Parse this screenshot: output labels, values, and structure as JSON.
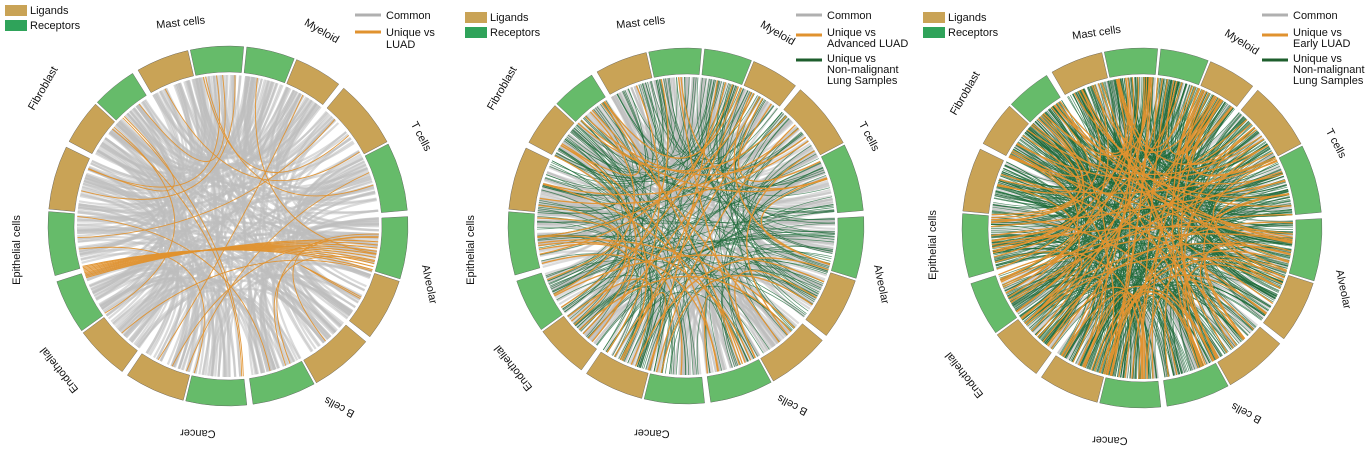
{
  "colors": {
    "ligand": "#c9a356",
    "receptor": "#66bb6a",
    "common": "#bdbdbd",
    "unique_luad": "#e0922f",
    "unique_nonmalignant": "#1d6b3a"
  },
  "panels": [
    {
      "legend_left": [
        {
          "label": "Ligands",
          "color": "#c9a356"
        },
        {
          "label": "Receptors",
          "color": "#2fa35a"
        }
      ],
      "legend_right": [
        {
          "lines": [
            "Common"
          ],
          "color": "#b0b0b0"
        },
        {
          "lines": [
            "Unique vs",
            "LUAD"
          ],
          "color": "#e0922f"
        }
      ],
      "segments": [
        "Mast cells",
        "Myeloid",
        "T cells",
        "Alveolar",
        "B cells",
        "Cancer",
        "Endothelial",
        "Epithelial cells",
        "Fibroblast"
      ],
      "density": {
        "common": 320,
        "unique_luad": 22,
        "unique_nonmalignant": 0
      }
    },
    {
      "legend_left": [
        {
          "label": "Ligands",
          "color": "#c9a356"
        },
        {
          "label": "Receptors",
          "color": "#2fa35a"
        }
      ],
      "legend_right": [
        {
          "lines": [
            "Common"
          ],
          "color": "#b0b0b0"
        },
        {
          "lines": [
            "Unique vs",
            "Advanced LUAD"
          ],
          "color": "#e0922f"
        },
        {
          "lines": [
            "Unique vs",
            "Non-malignant",
            "Lung Samples"
          ],
          "color": "#1d5e2c"
        }
      ],
      "segments": [
        "Mast cells",
        "Myeloid",
        "T cells",
        "Alveolar",
        "B cells",
        "Cancer",
        "Endothelial",
        "Epithelial cells",
        "Fibroblast"
      ],
      "density": {
        "common": 300,
        "unique_luad": 45,
        "unique_nonmalignant": 180
      }
    },
    {
      "legend_left": [
        {
          "label": "Ligands",
          "color": "#c9a356"
        },
        {
          "label": "Receptors",
          "color": "#2fa35a"
        }
      ],
      "legend_right": [
        {
          "lines": [
            "Common"
          ],
          "color": "#b0b0b0"
        },
        {
          "lines": [
            "Unique vs",
            "Early LUAD"
          ],
          "color": "#e0922f"
        },
        {
          "lines": [
            "Unique vs",
            "Non-malignant",
            "Lung Samples"
          ],
          "color": "#1d5e2c"
        }
      ],
      "segments": [
        "Mast cells",
        "Myeloid",
        "T cells",
        "Alveolar",
        "B cells",
        "Cancer",
        "Endothelial",
        "Epithelial cells",
        "Fibroblast"
      ],
      "density": {
        "common": 200,
        "unique_luad": 110,
        "unique_nonmalignant": 520
      }
    }
  ]
}
